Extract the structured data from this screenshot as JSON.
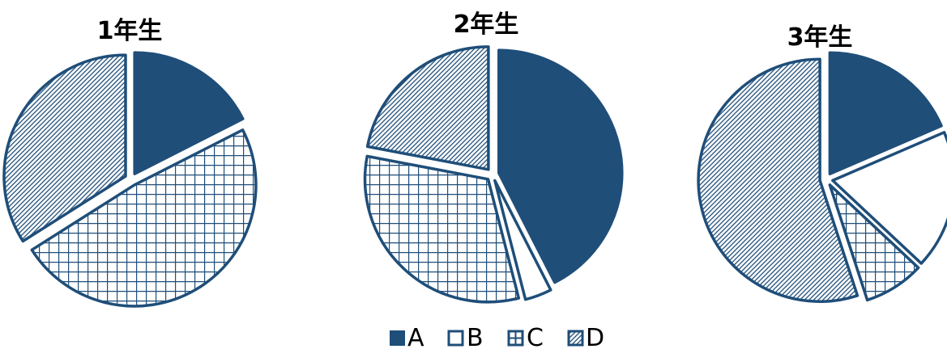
{
  "chart_data": [
    {
      "type": "pie",
      "title": "1年生",
      "categories": [
        "A",
        "B",
        "C",
        "D"
      ],
      "values": [
        17.5,
        0,
        48.5,
        34
      ],
      "exploded": true
    },
    {
      "type": "pie",
      "title": "2年生",
      "categories": [
        "A",
        "B",
        "C",
        "D"
      ],
      "values": [
        42.5,
        3.5,
        32,
        22
      ],
      "exploded": true
    },
    {
      "type": "pie",
      "title": "3年生",
      "categories": [
        "A",
        "B",
        "C",
        "D"
      ],
      "values": [
        18.5,
        18.5,
        8,
        55
      ],
      "exploded": true
    }
  ],
  "legend": {
    "placement": "bottom",
    "items": [
      {
        "label": "A",
        "fill": "solid"
      },
      {
        "label": "B",
        "fill": "blank"
      },
      {
        "label": "C",
        "fill": "grid"
      },
      {
        "label": "D",
        "fill": "diagonal"
      }
    ]
  },
  "colors": {
    "primary": "#1f4e79",
    "background": "#ffffff"
  }
}
